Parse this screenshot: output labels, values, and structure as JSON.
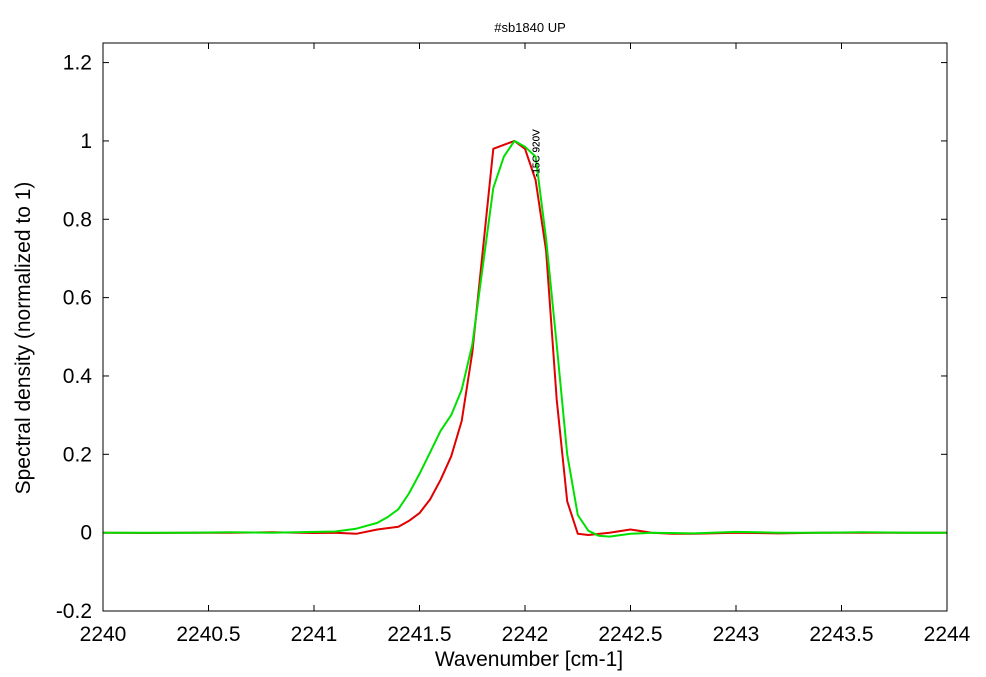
{
  "chart_data": {
    "type": "line",
    "title": "#sb1840 UP",
    "xlabel": "Wavenumber [cm-1]",
    "ylabel": "Spectral density (normalized to 1)",
    "xlim": [
      2240,
      2244
    ],
    "ylim": [
      -0.2,
      1.25
    ],
    "xticks": [
      2240,
      2240.5,
      2241,
      2241.5,
      2242,
      2242.5,
      2243,
      2243.5,
      2244
    ],
    "xtick_labels": [
      "2240",
      "2240.5",
      "2241",
      "2241.5",
      "2242",
      "2242.5",
      "2243",
      "2243.5",
      "2244"
    ],
    "yticks": [
      -0.2,
      0,
      0.2,
      0.4,
      0.6,
      0.8,
      1,
      1.2
    ],
    "ytick_labels": [
      "-0.2",
      "0",
      "0.2",
      "0.4",
      "0.6",
      "0.8",
      "1",
      "1.2"
    ],
    "grid": false,
    "annotations": [
      {
        "text": "-15C 920V",
        "x": 2242.05,
        "y": 1.03,
        "rotation": -90,
        "color": "#000000"
      },
      {
        "text": "-15C 920V",
        "x": 2242.05,
        "y": 1.03,
        "rotation": -90,
        "color": "#000000"
      }
    ],
    "series": [
      {
        "color": "#e00000",
        "points": [
          [
            2240.0,
            0.0
          ],
          [
            2240.2,
            -0.001
          ],
          [
            2240.4,
            0.0
          ],
          [
            2240.6,
            0.0
          ],
          [
            2240.8,
            0.001
          ],
          [
            2241.0,
            -0.001
          ],
          [
            2241.1,
            0.0
          ],
          [
            2241.2,
            -0.003
          ],
          [
            2241.3,
            0.008
          ],
          [
            2241.4,
            0.015
          ],
          [
            2241.45,
            0.03
          ],
          [
            2241.5,
            0.05
          ],
          [
            2241.55,
            0.085
          ],
          [
            2241.6,
            0.135
          ],
          [
            2241.65,
            0.195
          ],
          [
            2241.7,
            0.285
          ],
          [
            2241.75,
            0.46
          ],
          [
            2241.8,
            0.72
          ],
          [
            2241.85,
            0.98
          ],
          [
            2241.9,
            0.99
          ],
          [
            2241.95,
            1.0
          ],
          [
            2242.0,
            0.98
          ],
          [
            2242.05,
            0.9
          ],
          [
            2242.1,
            0.72
          ],
          [
            2242.15,
            0.34
          ],
          [
            2242.2,
            0.08
          ],
          [
            2242.25,
            -0.003
          ],
          [
            2242.3,
            -0.006
          ],
          [
            2242.4,
            0.0
          ],
          [
            2242.5,
            0.008
          ],
          [
            2242.6,
            0.0
          ],
          [
            2242.7,
            -0.003
          ],
          [
            2242.8,
            -0.003
          ],
          [
            2243.0,
            0.0
          ],
          [
            2243.2,
            -0.002
          ],
          [
            2243.4,
            0.0
          ],
          [
            2243.6,
            0.0
          ],
          [
            2243.8,
            0.0
          ],
          [
            2244.0,
            0.0
          ]
        ]
      },
      {
        "color": "#00e000",
        "points": [
          [
            2240.0,
            0.0
          ],
          [
            2240.2,
            0.0
          ],
          [
            2240.4,
            0.0
          ],
          [
            2240.6,
            0.001
          ],
          [
            2240.8,
            0.0
          ],
          [
            2241.0,
            0.002
          ],
          [
            2241.1,
            0.003
          ],
          [
            2241.2,
            0.01
          ],
          [
            2241.3,
            0.025
          ],
          [
            2241.35,
            0.04
          ],
          [
            2241.4,
            0.06
          ],
          [
            2241.45,
            0.1
          ],
          [
            2241.5,
            0.15
          ],
          [
            2241.55,
            0.205
          ],
          [
            2241.6,
            0.26
          ],
          [
            2241.65,
            0.3
          ],
          [
            2241.7,
            0.365
          ],
          [
            2241.75,
            0.48
          ],
          [
            2241.8,
            0.68
          ],
          [
            2241.85,
            0.88
          ],
          [
            2241.9,
            0.96
          ],
          [
            2241.95,
            1.0
          ],
          [
            2242.0,
            0.985
          ],
          [
            2242.05,
            0.96
          ],
          [
            2242.1,
            0.75
          ],
          [
            2242.15,
            0.48
          ],
          [
            2242.2,
            0.2
          ],
          [
            2242.25,
            0.045
          ],
          [
            2242.3,
            0.005
          ],
          [
            2242.35,
            -0.008
          ],
          [
            2242.4,
            -0.01
          ],
          [
            2242.5,
            -0.003
          ],
          [
            2242.6,
            0.0
          ],
          [
            2242.8,
            -0.002
          ],
          [
            2243.0,
            0.002
          ],
          [
            2243.2,
            0.0
          ],
          [
            2243.4,
            0.0
          ],
          [
            2243.6,
            0.001
          ],
          [
            2243.8,
            0.0
          ],
          [
            2244.0,
            0.0
          ]
        ]
      }
    ]
  }
}
